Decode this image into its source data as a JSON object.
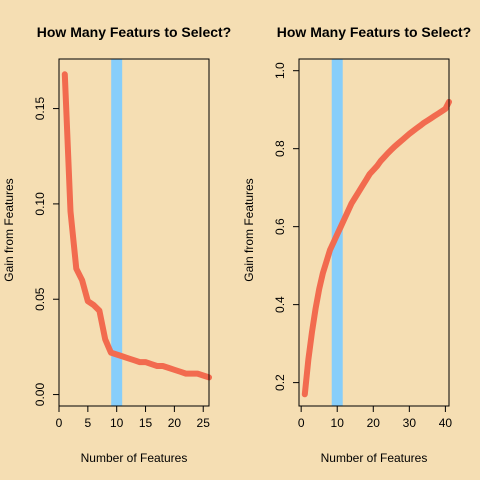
{
  "background": "#F5DEB3",
  "line_color": "#F26B4F",
  "vline_color": "#87CEFA",
  "chart_data": [
    {
      "type": "line",
      "title": "How Many Featurs to Select?",
      "xlabel": "Number of Features",
      "ylabel": "Gain from Features",
      "xlim": [
        0,
        26
      ],
      "ylim": [
        -0.006,
        0.176
      ],
      "xticks": [
        0,
        5,
        10,
        15,
        20,
        25
      ],
      "yticks": [
        0.0,
        0.05,
        0.1,
        0.15
      ],
      "ytick_labels": [
        "0.00",
        "0.05",
        "0.10",
        "0.15"
      ],
      "vline": 10,
      "series": [
        {
          "x": [
            1,
            2,
            3,
            4,
            5,
            6,
            7,
            8,
            9,
            10,
            11,
            12,
            13,
            14,
            15,
            16,
            17,
            18,
            19,
            20,
            21,
            22,
            23,
            24,
            25,
            26
          ],
          "values": [
            0.168,
            0.096,
            0.066,
            0.06,
            0.049,
            0.047,
            0.044,
            0.029,
            0.022,
            0.021,
            0.02,
            0.019,
            0.018,
            0.017,
            0.017,
            0.016,
            0.015,
            0.015,
            0.014,
            0.013,
            0.012,
            0.011,
            0.011,
            0.011,
            0.01,
            0.009
          ]
        }
      ]
    },
    {
      "type": "line",
      "title": "How Many Featurs to Select?",
      "xlabel": "Number of Features",
      "ylabel": "Gain from Features",
      "xlim": [
        -0.6,
        41
      ],
      "ylim": [
        0.14,
        1.03
      ],
      "xticks": [
        0,
        10,
        20,
        30,
        40
      ],
      "yticks": [
        0.2,
        0.4,
        0.6,
        0.8,
        1.0
      ],
      "ytick_labels": [
        "0.2",
        "0.4",
        "0.6",
        "0.8",
        "1.0"
      ],
      "vline": 10,
      "series": [
        {
          "x": [
            1,
            2,
            3,
            4,
            5,
            6,
            7,
            8,
            9,
            10,
            11,
            12,
            13,
            14,
            15,
            16,
            17,
            18,
            19,
            20,
            21,
            22,
            23,
            24,
            25,
            26,
            27,
            28,
            29,
            30,
            31,
            32,
            33,
            34,
            35,
            36,
            37,
            38,
            39,
            40,
            41
          ],
          "values": [
            0.17,
            0.26,
            0.33,
            0.39,
            0.44,
            0.48,
            0.51,
            0.54,
            0.56,
            0.58,
            0.6,
            0.62,
            0.64,
            0.66,
            0.675,
            0.69,
            0.705,
            0.72,
            0.735,
            0.745,
            0.755,
            0.768,
            0.778,
            0.788,
            0.797,
            0.806,
            0.814,
            0.822,
            0.83,
            0.838,
            0.845,
            0.852,
            0.859,
            0.866,
            0.872,
            0.878,
            0.884,
            0.89,
            0.896,
            0.902,
            0.92
          ]
        }
      ]
    }
  ]
}
